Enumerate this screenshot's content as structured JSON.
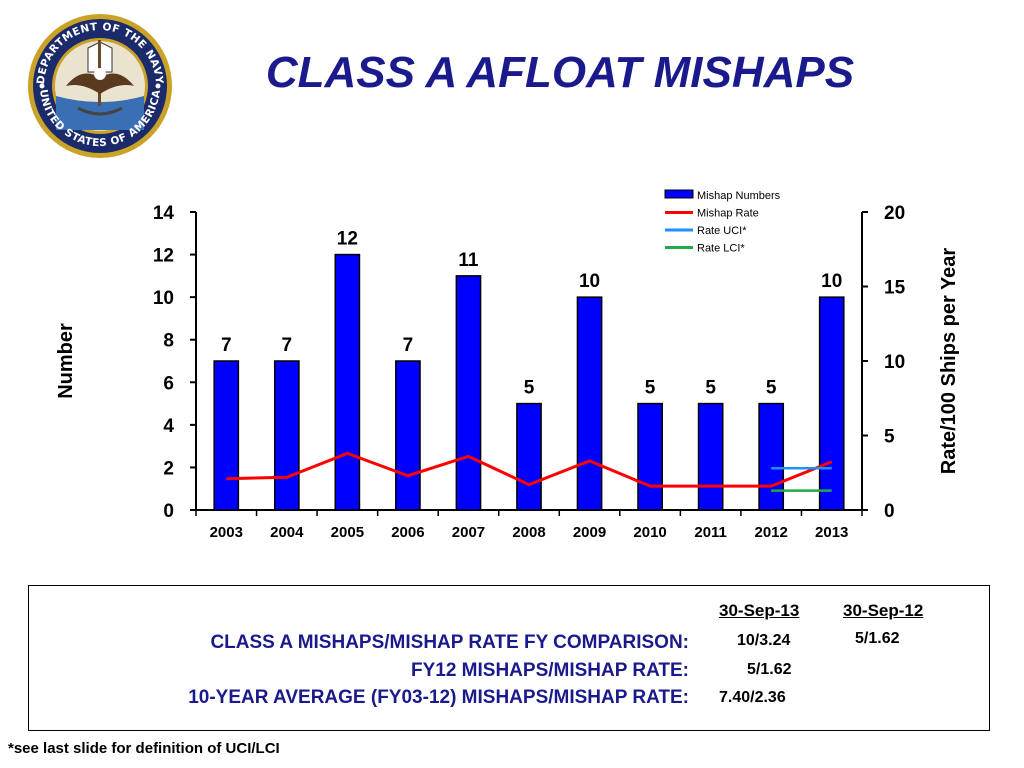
{
  "title": "CLASS A AFLOAT MISHAPS",
  "seal": {
    "text_top": "DEPARTMENT OF THE NAVY",
    "text_bottom": "UNITED STATES OF AMERICA",
    "colors": {
      "navy": "#1b2a6b",
      "gold": "#c9a227"
    }
  },
  "chart_data": {
    "type": "bar",
    "categories": [
      "2003",
      "2004",
      "2005",
      "2006",
      "2007",
      "2008",
      "2009",
      "2010",
      "2011",
      "2012",
      "2013"
    ],
    "ylabel": "Number",
    "y2label": "Rate/100 Ships per Year",
    "ylim": [
      0,
      14
    ],
    "y2lim": [
      0,
      20
    ],
    "yticks": [
      0,
      2,
      4,
      6,
      8,
      10,
      12,
      14
    ],
    "y2ticks": [
      0,
      5,
      10,
      15,
      20
    ],
    "legend_position": "top-right",
    "series": [
      {
        "name": "Mishap Numbers",
        "type": "bar",
        "axis": "left",
        "color": "#0000ff",
        "values": [
          7,
          7,
          12,
          7,
          11,
          5,
          10,
          5,
          5,
          5,
          10
        ]
      },
      {
        "name": "Mishap Rate",
        "type": "line",
        "axis": "right",
        "color": "#ff0000",
        "values": [
          2.1,
          2.2,
          3.8,
          2.3,
          3.6,
          1.7,
          3.3,
          1.6,
          1.6,
          1.6,
          3.24
        ]
      },
      {
        "name": "Rate UCI*",
        "type": "segment",
        "axis": "right",
        "color": "#1e90ff",
        "x_range": [
          "2012",
          "2013"
        ],
        "value": 2.8
      },
      {
        "name": "Rate LCI*",
        "type": "segment",
        "axis": "right",
        "color": "#22aa44",
        "x_range": [
          "2012",
          "2013"
        ],
        "value": 1.3
      }
    ]
  },
  "comparison": {
    "col1_header": "30-Sep-13",
    "col2_header": "30-Sep-12",
    "rows": [
      {
        "label": "CLASS A MISHAPS/MISHAP RATE FY COMPARISON:",
        "col1": "10/3.24",
        "col2": "5/1.62"
      },
      {
        "label": "FY12 MISHAPS/MISHAP RATE:",
        "col1": "5/1.62",
        "col2": ""
      },
      {
        "label": "10-YEAR AVERAGE (FY03-12) MISHAPS/MISHAP RATE:",
        "col1": "7.40/2.36",
        "col2": ""
      }
    ]
  },
  "footnote": "*see last slide for definition of UCI/LCI"
}
